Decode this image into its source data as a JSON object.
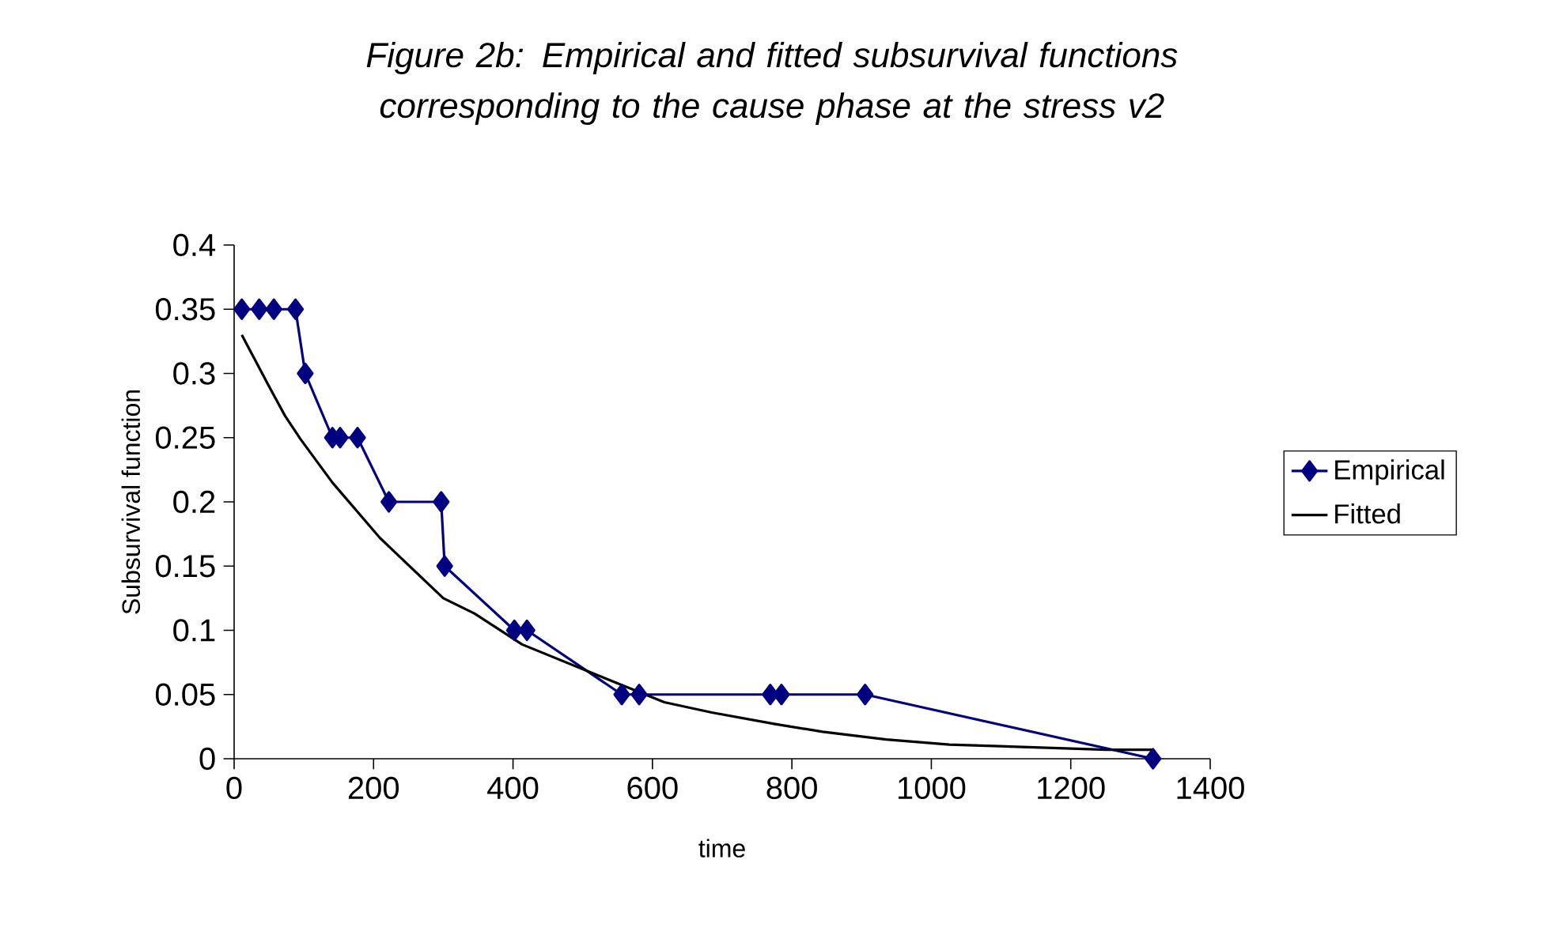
{
  "chart_data": {
    "type": "line",
    "title": "Figure 2b: Empirical and fitted subsurvival functions corresponding to the cause phase at the stress v2",
    "xlabel": "time",
    "ylabel": "Subsurvival function",
    "xlim": [
      0,
      1400
    ],
    "xticks": [
      0,
      200,
      400,
      600,
      800,
      1000,
      1200,
      1400
    ],
    "ylim": [
      0,
      0.4
    ],
    "yticks": [
      0,
      0.05,
      0.1,
      0.15,
      0.2,
      0.25,
      0.3,
      0.35,
      0.4
    ],
    "grid": false,
    "legend": "right",
    "line_style": "solid",
    "series": [
      {
        "name": "Empirical",
        "color": "#000080",
        "marker": "diamond",
        "x": [
          11,
          36,
          57,
          88,
          102,
          141,
          152,
          177,
          222,
          297,
          302,
          402,
          420,
          556,
          581,
          769,
          785,
          905,
          1318
        ],
        "values": [
          0.35,
          0.35,
          0.35,
          0.35,
          0.3,
          0.25,
          0.25,
          0.25,
          0.2,
          0.2,
          0.15,
          0.1,
          0.1,
          0.05,
          0.05,
          0.05,
          0.05,
          0.05,
          0
        ]
      },
      {
        "name": "Fitted",
        "color": "#000000",
        "marker": "none",
        "x": [
          11,
          50,
          73,
          95,
          141,
          209,
          300,
          345,
          413,
          526,
          617,
          685,
          776,
          844,
          935,
          1026,
          1139,
          1252,
          1318
        ],
        "values": [
          0.33,
          0.29,
          0.267,
          0.249,
          0.215,
          0.172,
          0.125,
          0.113,
          0.089,
          0.064,
          0.044,
          0.036,
          0.027,
          0.021,
          0.015,
          0.011,
          0.009,
          0.007,
          0.007
        ]
      }
    ]
  }
}
